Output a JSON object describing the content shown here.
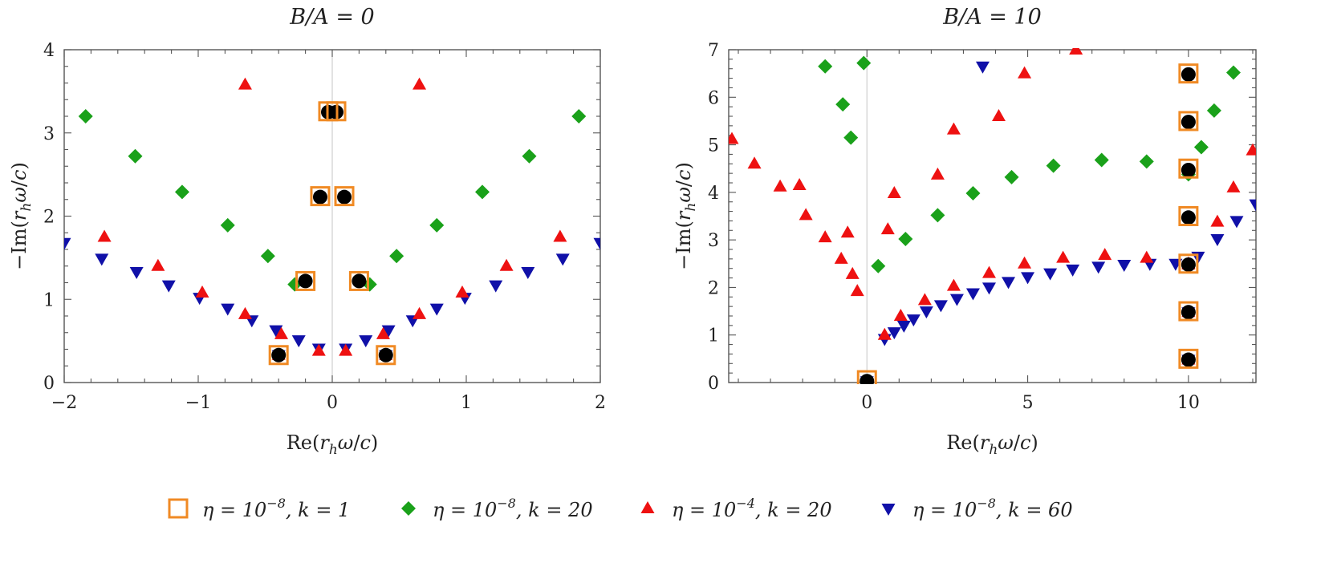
{
  "chart_data": [
    {
      "type": "scatter",
      "title": "B/A = 0",
      "xlabel": "Re(r_h ω/c)",
      "ylabel": "−Im(r_h ω/c)",
      "xlim": [
        -2,
        2
      ],
      "ylim": [
        0,
        4
      ],
      "xticks": [
        "−2",
        "−1",
        "0",
        "1",
        "2"
      ],
      "yticks": [
        "0",
        "1",
        "2",
        "3",
        "4"
      ],
      "exact_points": [
        [
          -0.4,
          0.33
        ],
        [
          0.4,
          0.33
        ],
        [
          -0.2,
          1.22
        ],
        [
          0.2,
          1.22
        ],
        [
          -0.09,
          2.23
        ],
        [
          0.09,
          2.23
        ],
        [
          -0.03,
          3.25
        ],
        [
          0.03,
          3.25
        ]
      ],
      "series": [
        {
          "name": "η = 10^{−8}, k = 1",
          "marker": "square",
          "points": [
            [
              -0.4,
              0.33
            ],
            [
              0.4,
              0.33
            ],
            [
              -0.2,
              1.22
            ],
            [
              0.2,
              1.22
            ],
            [
              -0.09,
              2.24
            ],
            [
              0.09,
              2.24
            ],
            [
              -0.03,
              3.26
            ],
            [
              0.03,
              3.26
            ]
          ]
        },
        {
          "name": "η = 10^{−8}, k = 20",
          "marker": "diamond",
          "points": [
            [
              -0.4,
              0.33
            ],
            [
              0.4,
              0.33
            ],
            [
              -0.28,
              1.18
            ],
            [
              0.28,
              1.18
            ],
            [
              -0.48,
              1.52
            ],
            [
              0.48,
              1.52
            ],
            [
              -0.78,
              1.89
            ],
            [
              0.78,
              1.89
            ],
            [
              -1.12,
              2.29
            ],
            [
              1.12,
              2.29
            ],
            [
              -1.47,
              2.72
            ],
            [
              1.47,
              2.72
            ],
            [
              -1.84,
              3.2
            ],
            [
              1.84,
              3.2
            ]
          ]
        },
        {
          "name": "η = 10^{−4}, k = 20",
          "marker": "triangle-up",
          "points": [
            [
              -0.4,
              0.33
            ],
            [
              0.4,
              0.33
            ],
            [
              -0.1,
              0.38
            ],
            [
              0.1,
              0.38
            ],
            [
              -0.38,
              0.58
            ],
            [
              0.38,
              0.58
            ],
            [
              -0.65,
              0.82
            ],
            [
              0.65,
              0.82
            ],
            [
              -0.97,
              1.08
            ],
            [
              0.97,
              1.08
            ],
            [
              -1.3,
              1.4
            ],
            [
              1.3,
              1.4
            ],
            [
              -1.7,
              1.75
            ],
            [
              1.7,
              1.75
            ],
            [
              -0.65,
              3.58
            ],
            [
              0.65,
              3.58
            ]
          ]
        },
        {
          "name": "η = 10^{−8}, k = 60",
          "marker": "triangle-down",
          "points": [
            [
              -0.4,
              0.33
            ],
            [
              0.4,
              0.33
            ],
            [
              -0.1,
              0.41
            ],
            [
              0.1,
              0.41
            ],
            [
              -0.25,
              0.51
            ],
            [
              0.25,
              0.51
            ],
            [
              -0.42,
              0.63
            ],
            [
              0.42,
              0.63
            ],
            [
              -0.6,
              0.75
            ],
            [
              0.6,
              0.75
            ],
            [
              -0.78,
              0.89
            ],
            [
              0.78,
              0.89
            ],
            [
              -0.99,
              1.02
            ],
            [
              0.99,
              1.02
            ],
            [
              -1.22,
              1.17
            ],
            [
              1.22,
              1.17
            ],
            [
              -1.46,
              1.33
            ],
            [
              1.46,
              1.33
            ],
            [
              -1.72,
              1.49
            ],
            [
              1.72,
              1.49
            ],
            [
              -2.0,
              1.68
            ],
            [
              2.0,
              1.68
            ]
          ]
        }
      ]
    },
    {
      "type": "scatter",
      "title": "B/A = 10",
      "xlabel": "Re(r_h ω/c)",
      "ylabel": "−Im(r_h ω/c)",
      "xlim": [
        -4.3,
        12.1
      ],
      "ylim": [
        0,
        7
      ],
      "xticks": [
        "0",
        "5",
        "10"
      ],
      "yticks": [
        "0",
        "1",
        "2",
        "3",
        "4",
        "5",
        "6",
        "7"
      ],
      "exact_points": [
        [
          0,
          0.03
        ],
        [
          10,
          0.48
        ],
        [
          10,
          1.48
        ],
        [
          10,
          2.48
        ],
        [
          10,
          3.47
        ],
        [
          10,
          4.47
        ],
        [
          10,
          5.48
        ],
        [
          10,
          6.48
        ]
      ],
      "series": [
        {
          "name": "η = 10^{−8}, k = 1",
          "marker": "square",
          "points": [
            [
              0,
              0.05
            ],
            [
              10,
              0.5
            ],
            [
              10,
              1.5
            ],
            [
              10,
              2.5
            ],
            [
              10,
              3.5
            ],
            [
              10,
              4.5
            ],
            [
              10,
              5.5
            ],
            [
              10,
              6.5
            ]
          ]
        },
        {
          "name": "η = 10^{−8}, k = 20",
          "marker": "diamond",
          "points": [
            [
              0,
              0.03
            ],
            [
              10,
              0.48
            ],
            [
              10,
              1.48
            ],
            [
              10,
              2.45
            ],
            [
              10,
              3.46
            ],
            [
              10,
              4.38
            ],
            [
              0.35,
              2.45
            ],
            [
              1.2,
              3.02
            ],
            [
              2.2,
              3.52
            ],
            [
              3.3,
              3.98
            ],
            [
              4.5,
              4.32
            ],
            [
              5.8,
              4.56
            ],
            [
              7.3,
              4.68
            ],
            [
              8.7,
              4.65
            ],
            [
              10.4,
              4.95
            ],
            [
              10.8,
              5.72
            ],
            [
              11.4,
              6.52
            ],
            [
              -1.3,
              6.65
            ],
            [
              -0.1,
              6.72
            ],
            [
              -0.75,
              5.85
            ],
            [
              -0.5,
              5.15
            ]
          ]
        },
        {
          "name": "η = 10^{−4}, k = 20",
          "marker": "triangle-up",
          "points": [
            [
              0,
              0.03
            ],
            [
              10,
              0.48
            ],
            [
              10,
              1.48
            ],
            [
              10,
              2.48
            ],
            [
              0.55,
              1.0
            ],
            [
              1.05,
              1.4
            ],
            [
              1.8,
              1.73
            ],
            [
              2.7,
              2.03
            ],
            [
              3.8,
              2.3
            ],
            [
              4.9,
              2.5
            ],
            [
              6.1,
              2.62
            ],
            [
              7.4,
              2.68
            ],
            [
              8.7,
              2.62
            ],
            [
              10.0,
              2.5
            ],
            [
              10.9,
              3.38
            ],
            [
              11.4,
              4.1
            ],
            [
              12.0,
              4.88
            ],
            [
              -0.3,
              1.92
            ],
            [
              -0.45,
              2.28
            ],
            [
              -0.8,
              2.6
            ],
            [
              -0.6,
              3.15
            ],
            [
              -1.3,
              3.05
            ],
            [
              -1.9,
              3.52
            ],
            [
              -2.1,
              4.15
            ],
            [
              -2.7,
              4.12
            ],
            [
              -3.5,
              4.6
            ],
            [
              -4.2,
              5.12
            ],
            [
              0.85,
              3.98
            ],
            [
              0.65,
              3.22
            ],
            [
              2.2,
              4.37
            ],
            [
              2.7,
              5.32
            ],
            [
              4.1,
              5.6
            ],
            [
              4.9,
              6.5
            ],
            [
              6.5,
              7.0
            ]
          ]
        },
        {
          "name": "η = 10^{−8}, k = 60",
          "marker": "triangle-down",
          "points": [
            [
              0,
              0.03
            ],
            [
              10,
              0.48
            ],
            [
              10,
              1.48
            ],
            [
              10,
              2.45
            ],
            [
              0.55,
              0.92
            ],
            [
              0.85,
              1.06
            ],
            [
              1.15,
              1.2
            ],
            [
              1.45,
              1.33
            ],
            [
              1.85,
              1.5
            ],
            [
              2.3,
              1.63
            ],
            [
              2.8,
              1.76
            ],
            [
              3.3,
              1.88
            ],
            [
              3.8,
              2.0
            ],
            [
              4.4,
              2.12
            ],
            [
              5.0,
              2.22
            ],
            [
              5.7,
              2.3
            ],
            [
              6.4,
              2.38
            ],
            [
              7.2,
              2.44
            ],
            [
              8.0,
              2.48
            ],
            [
              8.8,
              2.5
            ],
            [
              9.6,
              2.5
            ],
            [
              10.3,
              2.65
            ],
            [
              10.9,
              3.02
            ],
            [
              11.5,
              3.4
            ],
            [
              12.1,
              3.75
            ],
            [
              3.6,
              6.65
            ]
          ]
        }
      ]
    }
  ],
  "legend": {
    "placement": "bottom",
    "items": [
      {
        "marker": "square",
        "label": "η = 10",
        "exp": "−8",
        "rest": ", k = 1"
      },
      {
        "marker": "diamond",
        "label": "η = 10",
        "exp": "−8",
        "rest": ", k = 20"
      },
      {
        "marker": "triangle-up",
        "label": "η = 10",
        "exp": "−4",
        "rest": ", k = 20"
      },
      {
        "marker": "triangle-down",
        "label": "η = 10",
        "exp": "−8",
        "rest": ", k = 60"
      }
    ]
  },
  "colors": {
    "square": "#f08a24",
    "diamond": "#1aa11a",
    "triangle-up": "#ee1111",
    "triangle-down": "#1010a8",
    "exact": "#000000",
    "frame": "#555555",
    "zero-line": "#cfcfcf"
  }
}
